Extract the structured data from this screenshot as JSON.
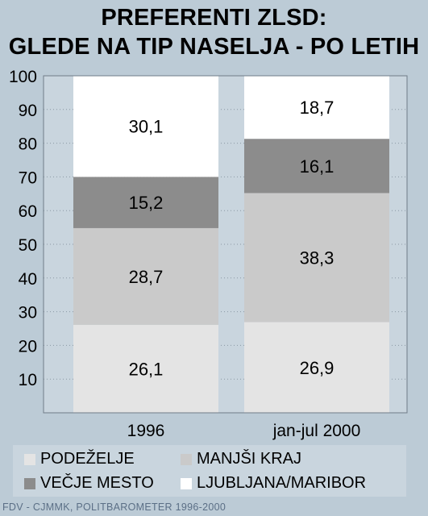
{
  "title_line1": "PREFERENTI ZLSD:",
  "title_line2": "GLEDE NA TIP NASELJA - PO LETIH",
  "source": "FDV - CJMMK, POLITBAROMETER 1996-2000",
  "colors": {
    "background": "#bccbd6",
    "plot_area": "#c9d5de",
    "PODEŽELJE": "#e4e4e4",
    "MANJŠI KRAJ": "#cacaca",
    "VEČJE MESTO": "#8c8c8c",
    "LJUBLJANA/MARIBOR": "#ffffff"
  },
  "legend": [
    {
      "label": "PODEŽELJE",
      "color": "#e4e4e4"
    },
    {
      "label": "MANJŠI KRAJ",
      "color": "#cacaca"
    },
    {
      "label": "VEČJE MESTO",
      "color": "#8c8c8c"
    },
    {
      "label": "LJUBLJANA/MARIBOR",
      "color": "#ffffff"
    }
  ],
  "chart_data": {
    "type": "bar",
    "stacked": true,
    "title": "PREFERENTI ZLSD: GLEDE NA TIP NASELJA - PO LETIH",
    "categories": [
      "1996",
      "jan-jul 2000"
    ],
    "series": [
      {
        "name": "PODEŽELJE",
        "values": [
          26.1,
          26.9
        ],
        "labels": [
          "26,1",
          "26,9"
        ]
      },
      {
        "name": "MANJŠI KRAJ",
        "values": [
          28.7,
          38.3
        ],
        "labels": [
          "28,7",
          "38,3"
        ]
      },
      {
        "name": "VEČJE MESTO",
        "values": [
          15.2,
          16.1
        ],
        "labels": [
          "15,2",
          "16,1"
        ]
      },
      {
        "name": "LJUBLJANA/MARIBOR",
        "values": [
          30.1,
          18.7
        ],
        "labels": [
          "30,1",
          "18,7"
        ]
      }
    ],
    "ylim": [
      0,
      100
    ],
    "yticks": [
      10,
      20,
      30,
      40,
      50,
      60,
      70,
      80,
      90,
      100
    ],
    "grid": "dotted horizontal",
    "legend_position": "bottom"
  }
}
